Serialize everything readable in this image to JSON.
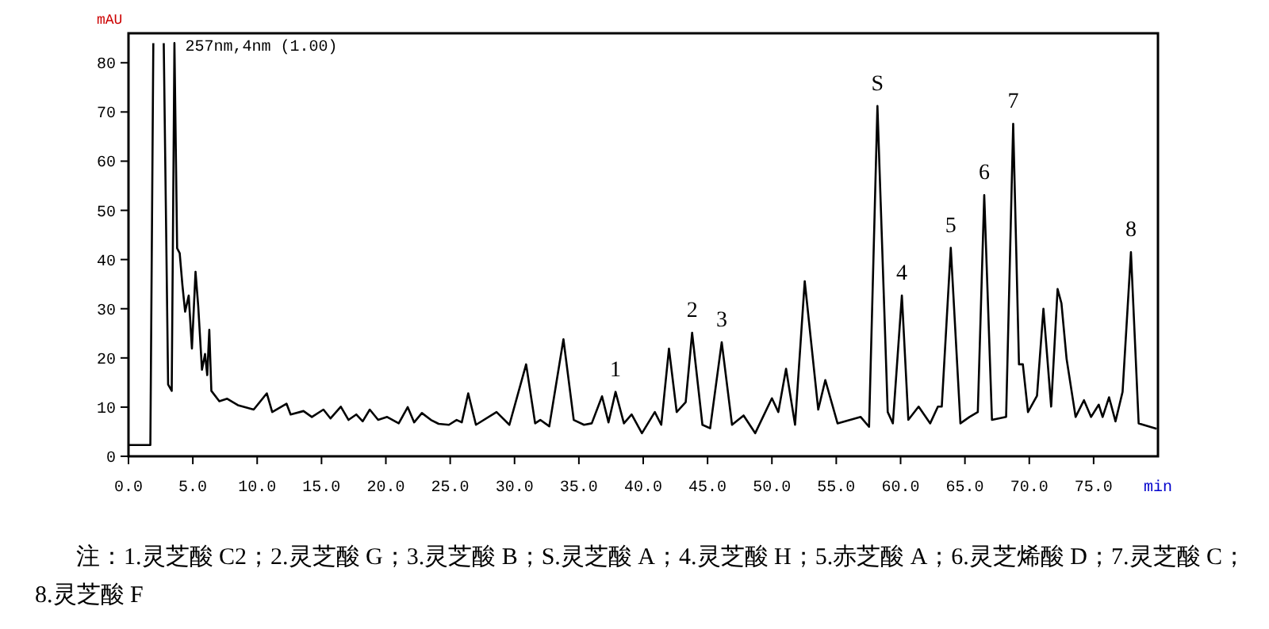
{
  "chart_data": {
    "type": "line",
    "ylabel": "mAU",
    "xlabel": "min",
    "xlim": [
      0,
      80
    ],
    "ylim": [
      0,
      86
    ],
    "xticks": [
      {
        "value": 0,
        "label": "0.0"
      },
      {
        "value": 5,
        "label": "5.0"
      },
      {
        "value": 10,
        "label": "10.0"
      },
      {
        "value": 15,
        "label": "15.0"
      },
      {
        "value": 20,
        "label": "20.0"
      },
      {
        "value": 25,
        "label": "25.0"
      },
      {
        "value": 30,
        "label": "30.0"
      },
      {
        "value": 35,
        "label": "35.0"
      },
      {
        "value": 40,
        "label": "40.0"
      },
      {
        "value": 45,
        "label": "45.0"
      },
      {
        "value": 50,
        "label": "50.0"
      },
      {
        "value": 55,
        "label": "55.0"
      },
      {
        "value": 60,
        "label": "60.0"
      },
      {
        "value": 65,
        "label": "65.0"
      },
      {
        "value": 70,
        "label": "70.0"
      },
      {
        "value": 75,
        "label": "75.0"
      }
    ],
    "yticks": [
      0,
      10,
      20,
      30,
      40,
      50,
      60,
      70,
      80
    ],
    "grid": false,
    "marker": "none",
    "line_style": "solid",
    "series": [
      {
        "color": "#000000",
        "x": [
          0,
          1.7,
          1.93,
          2.1,
          2.74,
          3.08,
          3.36,
          3.5,
          3.57,
          3.78,
          3.98,
          4.19,
          4.4,
          4.68,
          4.93,
          5.21,
          5.42,
          5.71,
          5.95,
          6.12,
          6.28,
          6.44,
          7.06,
          7.67,
          8.5,
          9.73,
          10.75,
          11.17,
          12.28,
          12.6,
          13.6,
          14.25,
          15.15,
          15.7,
          16.5,
          17.1,
          17.7,
          18.2,
          18.75,
          19.4,
          20.1,
          21.0,
          21.7,
          22.2,
          22.8,
          23.5,
          24.1,
          24.9,
          25.5,
          25.9,
          26.4,
          27.0,
          28.6,
          29.6,
          30.9,
          31.6,
          32.0,
          32.7,
          33.8,
          34.6,
          35.4,
          36.0,
          36.8,
          37.3,
          37.85,
          38.5,
          39.1,
          39.9,
          40.9,
          41.4,
          42.0,
          42.6,
          43.3,
          43.8,
          44.6,
          45.2,
          46.1,
          46.9,
          47.8,
          48.7,
          50.0,
          50.5,
          51.1,
          51.8,
          52.55,
          53.6,
          54.15,
          55.1,
          56.9,
          57.55,
          58.2,
          59.0,
          59.4,
          60.1,
          60.6,
          61.4,
          62.3,
          62.9,
          63.2,
          63.9,
          64.65,
          65.35,
          66.0,
          66.5,
          67.1,
          68.2,
          68.75,
          69.2,
          69.5,
          69.9,
          70.6,
          71.1,
          71.7,
          72.2,
          72.5,
          72.9,
          73.6,
          74.25,
          74.8,
          75.4,
          75.7,
          76.2,
          76.7,
          77.25,
          77.9,
          78.5,
          79.9
        ],
        "values": [
          2.3,
          2.3,
          84,
          null,
          84,
          14.6,
          13.3,
          60,
          84,
          42.3,
          41.3,
          34.8,
          29.4,
          32.7,
          21.9,
          37.5,
          30.5,
          17.6,
          20.8,
          16.5,
          25.7,
          13.3,
          11.2,
          11.7,
          10.4,
          9.5,
          12.8,
          9.0,
          10.7,
          8.5,
          9.2,
          8.0,
          9.5,
          7.7,
          10.1,
          7.4,
          8.5,
          7.1,
          9.5,
          7.4,
          8.0,
          6.7,
          10.0,
          6.9,
          8.8,
          7.4,
          6.6,
          6.4,
          7.4,
          6.9,
          12.8,
          6.4,
          9.0,
          6.4,
          18.7,
          6.7,
          7.4,
          6.1,
          23.8,
          7.4,
          6.4,
          6.7,
          12.2,
          6.9,
          13.1,
          6.7,
          8.5,
          4.7,
          9.0,
          6.4,
          21.9,
          9.0,
          11.0,
          25.1,
          6.4,
          5.7,
          23.2,
          6.4,
          8.3,
          4.7,
          11.8,
          9.0,
          17.8,
          6.4,
          35.6,
          9.5,
          15.5,
          6.7,
          8.0,
          6.0,
          71.2,
          9.0,
          6.7,
          32.7,
          7.4,
          10.1,
          6.7,
          10.1,
          10.1,
          42.4,
          6.7,
          8.0,
          9.0,
          53.1,
          7.4,
          8.0,
          67.6,
          18.7,
          18.7,
          9.0,
          12.3,
          30.0,
          10.1,
          34.0,
          31.1,
          19.8,
          8.0,
          11.4,
          8.0,
          10.5,
          8.0,
          12.0,
          7.1,
          13.1,
          41.5,
          6.7,
          5.6
        ]
      }
    ],
    "annotations": [
      "257nm,4nm (1.00)",
      {
        "text": "1",
        "x": 37.85,
        "y": 13.1
      },
      {
        "text": "2",
        "x": 43.8,
        "y": 25.1
      },
      {
        "text": "3",
        "x": 46.1,
        "y": 23.2
      },
      {
        "text": "S",
        "x": 58.2,
        "y": 71.2
      },
      {
        "text": "4",
        "x": 60.1,
        "y": 32.7
      },
      {
        "text": "5",
        "x": 63.9,
        "y": 42.4
      },
      {
        "text": "6",
        "x": 66.5,
        "y": 53.1
      },
      {
        "text": "7",
        "x": 68.75,
        "y": 67.6
      },
      {
        "text": "8",
        "x": 77.9,
        "y": 41.5
      },
      "注：1.灵芝酸 C2；2.灵芝酸 G；3.灵芝酸 B；S.灵芝酸 A；4.灵芝酸 H；5.赤芝酸 A；6.灵芝烯酸 D；7.灵芝酸 C；8.灵芝酸 F"
    ]
  }
}
